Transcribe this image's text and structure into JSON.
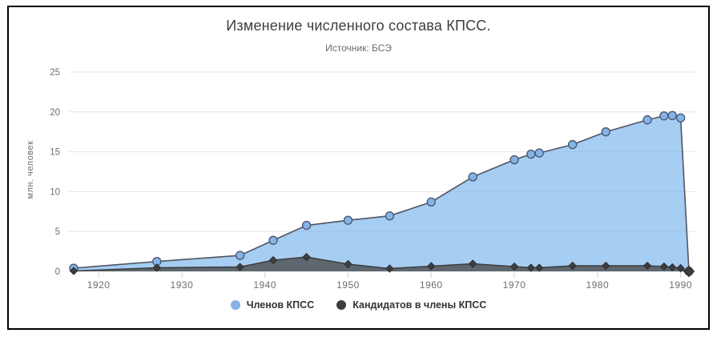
{
  "header": {
    "title": "Изменение численного состава КПСС.",
    "subtitle": "Источник: БСЭ"
  },
  "y_axis": {
    "title": "млн. человек"
  },
  "legend": {
    "position": "bottom",
    "items": [
      {
        "label": "Членов КПСС"
      },
      {
        "label": "Кандидатов в члены КПСС"
      }
    ]
  },
  "colors": {
    "grid": "#e4e4e4",
    "axis_tick": "#d6d6d6",
    "tick_text": "#6e6e6e",
    "frame_border": "#000000"
  },
  "chart_data": {
    "type": "area",
    "stacking": "normal",
    "title": "Изменение численного состава КПСС.",
    "subtitle": "Источник: БСЭ",
    "ylabel": "млн. человек",
    "xlabel": "",
    "x": [
      1917,
      1927,
      1937,
      1941,
      1945,
      1950,
      1955,
      1960,
      1965,
      1970,
      1972,
      1973,
      1977,
      1981,
      1986,
      1988,
      1989,
      1990,
      1991
    ],
    "series": [
      {
        "name": "Членов КПСС",
        "values": [
          0.35,
          0.79,
          1.45,
          2.49,
          3.97,
          5.51,
          6.61,
          8.05,
          10.9,
          13.4,
          14.25,
          14.4,
          15.2,
          16.8,
          18.3,
          18.9,
          19.05,
          18.85,
          0
        ],
        "marker": "circle",
        "fill_color": "#7cb5ec",
        "fill_opacity": 0.68,
        "line_color": "#4f5562",
        "marker_color": "#85b3e8",
        "marker_stroke": "#4a5a74",
        "stack_level": "top"
      },
      {
        "name": "Кандидатов в члены КПСС",
        "values": [
          0.05,
          0.45,
          0.55,
          1.4,
          1.8,
          0.9,
          0.35,
          0.65,
          0.95,
          0.6,
          0.45,
          0.45,
          0.7,
          0.7,
          0.7,
          0.6,
          0.5,
          0.4,
          0
        ],
        "marker": "diamond",
        "fill_color": "#4a4a4a",
        "fill_opacity": 0.78,
        "line_color": "#3f3f3f",
        "marker_color": "#3d3e40",
        "marker_stroke": "#2e2f31",
        "stack_level": "bottom"
      }
    ],
    "stacked_totals": [
      0.4,
      1.24,
      2.0,
      3.89,
      5.77,
      6.41,
      6.96,
      8.7,
      11.85,
      14.0,
      14.7,
      14.85,
      15.9,
      17.5,
      19.0,
      19.5,
      19.55,
      19.25,
      0
    ],
    "xlim": [
      1917,
      1991
    ],
    "ylim": [
      0,
      25
    ],
    "xticks": [
      1920,
      1930,
      1940,
      1950,
      1960,
      1970,
      1980,
      1990
    ],
    "yticks": [
      0,
      5,
      10,
      15,
      20,
      25
    ],
    "grid": "horizontal",
    "legend_position": "bottom"
  }
}
